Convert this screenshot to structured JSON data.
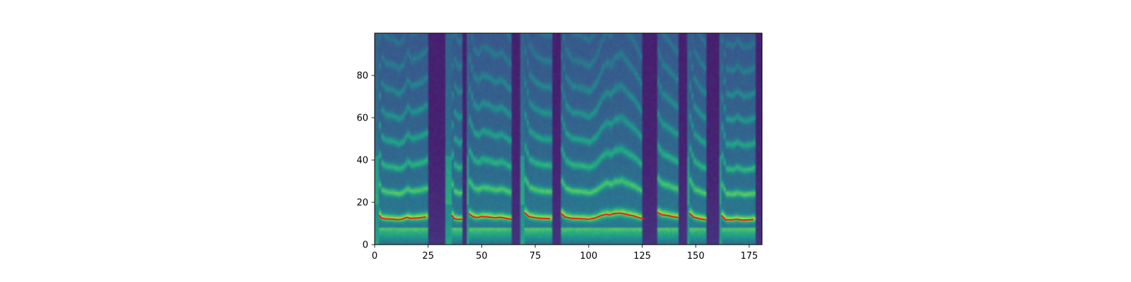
{
  "chart_data": {
    "type": "heatmap",
    "title": "",
    "xlabel": "",
    "ylabel": "",
    "xlim": [
      0,
      181
    ],
    "ylim": [
      0,
      100
    ],
    "x_ticks": [
      "0",
      "25",
      "50",
      "75",
      "100",
      "125",
      "150",
      "175"
    ],
    "y_ticks": [
      "0",
      "20",
      "40",
      "60",
      "80"
    ],
    "colormap": "viridis",
    "frames": 181,
    "bins": 100,
    "overlay_color": "#e6211f",
    "silences": [
      [
        25,
        33
      ],
      [
        41,
        43
      ],
      [
        64,
        68
      ],
      [
        83,
        87
      ],
      [
        125,
        132
      ],
      [
        142,
        146
      ],
      [
        155,
        161
      ],
      [
        178,
        181
      ]
    ],
    "pitch_overlay": [
      [
        [
          2,
          14.0
        ],
        [
          3,
          12.6
        ],
        [
          5,
          12.2
        ],
        [
          8,
          12.1
        ],
        [
          11,
          11.8
        ],
        [
          13,
          12.1
        ],
        [
          15,
          12.9
        ],
        [
          17,
          12.4
        ],
        [
          20,
          12.6
        ],
        [
          22,
          12.8
        ],
        [
          24,
          13.1
        ]
      ],
      [
        [
          36,
          14.0
        ],
        [
          37,
          12.4
        ],
        [
          39,
          11.9
        ],
        [
          41,
          12.1
        ]
      ],
      [
        [
          44,
          14.6
        ],
        [
          46,
          13.2
        ],
        [
          48,
          12.8
        ],
        [
          50,
          13.3
        ],
        [
          53,
          13.1
        ],
        [
          56,
          12.7
        ],
        [
          59,
          12.9
        ],
        [
          62,
          12.3
        ],
        [
          64,
          12.0
        ]
      ],
      [
        [
          70,
          15.2
        ],
        [
          72,
          13.3
        ],
        [
          75,
          12.7
        ],
        [
          78,
          12.4
        ],
        [
          82,
          12.3
        ]
      ],
      [
        [
          87,
          14.8
        ],
        [
          89,
          13.1
        ],
        [
          92,
          12.4
        ],
        [
          96,
          12.3
        ],
        [
          100,
          12.0
        ],
        [
          103,
          12.6
        ],
        [
          106,
          13.8
        ],
        [
          108,
          14.3
        ],
        [
          110,
          14.1
        ],
        [
          112,
          14.7
        ],
        [
          115,
          14.9
        ],
        [
          118,
          14.2
        ],
        [
          121,
          13.6
        ],
        [
          124,
          12.6
        ],
        [
          126,
          12.2
        ]
      ],
      [
        [
          132,
          15.3
        ],
        [
          134,
          14.2
        ],
        [
          137,
          13.7
        ],
        [
          140,
          13.1
        ],
        [
          142,
          12.8
        ]
      ],
      [
        [
          147,
          14.9
        ],
        [
          149,
          13.0
        ],
        [
          152,
          12.2
        ],
        [
          155,
          11.7
        ]
      ],
      [
        [
          162,
          13.8
        ],
        [
          164,
          11.8
        ],
        [
          167,
          11.7
        ],
        [
          169,
          12.0
        ],
        [
          172,
          11.6
        ],
        [
          175,
          11.7
        ],
        [
          177,
          11.9
        ]
      ]
    ]
  }
}
